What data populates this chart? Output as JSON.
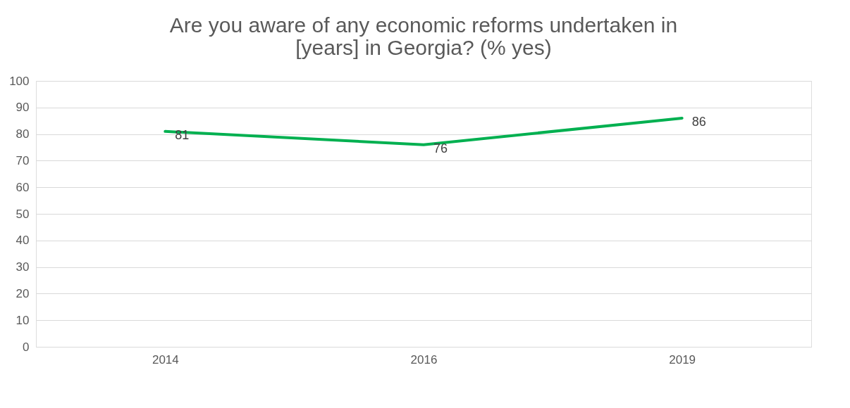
{
  "chart_data": {
    "type": "line",
    "title": "Are you aware of any economic reforms undertaken in [years] in Georgia? (% yes)",
    "categories": [
      "2014",
      "2016",
      "2019"
    ],
    "series": [
      {
        "color": "#00b050",
        "values": [
          81,
          76,
          86
        ]
      }
    ],
    "ylim": [
      0,
      100
    ],
    "yticks": [
      0,
      10,
      20,
      30,
      40,
      50,
      60,
      70,
      80,
      90,
      100
    ],
    "grid": "y",
    "legend": false,
    "marker": "none",
    "line_style": "solid",
    "data_labels": true
  }
}
